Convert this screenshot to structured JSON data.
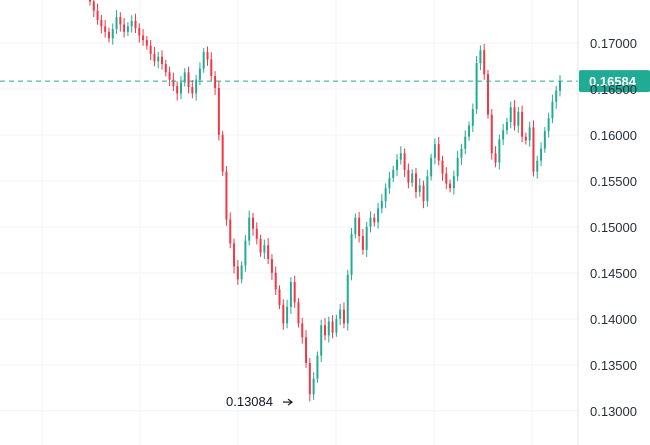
{
  "chart_data": {
    "type": "candlestick",
    "title": "",
    "xlabel": "",
    "ylabel": "",
    "ylim": [
      0.129,
      0.1745
    ],
    "y_ticks": [
      "0.17000",
      "0.16500",
      "0.16000",
      "0.15500",
      "0.15000",
      "0.14500",
      "0.14000",
      "0.13500",
      "0.13000"
    ],
    "y_tick_values": [
      0.17,
      0.165,
      0.16,
      0.155,
      0.15,
      0.145,
      0.14,
      0.135,
      0.13
    ],
    "grid": true,
    "current_price": {
      "label": "0.16584",
      "value": 0.16584,
      "color": "#22ab94"
    },
    "low_marker": {
      "label": "0.13084",
      "value": 0.13084
    },
    "colors": {
      "up": "#22ab94",
      "down": "#f23645",
      "grid": "#f0f3fa"
    },
    "series": [
      {
        "values": [
          0.1745,
          0.1735,
          0.1725,
          0.1718,
          0.1712,
          0.1705,
          0.1715,
          0.1728,
          0.172,
          0.1712,
          0.1718,
          0.1724,
          0.1716,
          0.1708,
          0.1703,
          0.1697,
          0.1688,
          0.168,
          0.1685,
          0.1677,
          0.1668,
          0.166,
          0.1653,
          0.1645,
          0.1657,
          0.1668,
          0.1652,
          0.1645,
          0.166,
          0.1672,
          0.169,
          0.1682,
          0.1664,
          0.1651,
          0.16,
          0.156,
          0.1508,
          0.1482,
          0.1457,
          0.1443,
          0.1458,
          0.1485,
          0.151,
          0.1498,
          0.1487,
          0.1472,
          0.148,
          0.1465,
          0.145,
          0.1432,
          0.1415,
          0.1395,
          0.1413,
          0.144,
          0.1418,
          0.1395,
          0.138,
          0.1352,
          0.1318,
          0.1335,
          0.136,
          0.1393,
          0.1382,
          0.1397,
          0.1385,
          0.14,
          0.141,
          0.1395,
          0.1448,
          0.1492,
          0.151,
          0.149,
          0.1475,
          0.15,
          0.151,
          0.1505,
          0.152,
          0.1528,
          0.1542,
          0.1553,
          0.1562,
          0.1573,
          0.158,
          0.1562,
          0.1548,
          0.1558,
          0.1538,
          0.1545,
          0.1528,
          0.1555,
          0.1575,
          0.159,
          0.1572,
          0.1558,
          0.1547,
          0.1542,
          0.1555,
          0.1575,
          0.1585,
          0.1598,
          0.161,
          0.1628,
          0.1678,
          0.1692,
          0.1666,
          0.1622,
          0.158,
          0.157,
          0.1595,
          0.1605,
          0.1614,
          0.163,
          0.161,
          0.1625,
          0.1598,
          0.1594,
          0.1608,
          0.156,
          0.1572,
          0.1585,
          0.1604,
          0.1618,
          0.1636,
          0.1648,
          0.1658
        ]
      }
    ]
  }
}
